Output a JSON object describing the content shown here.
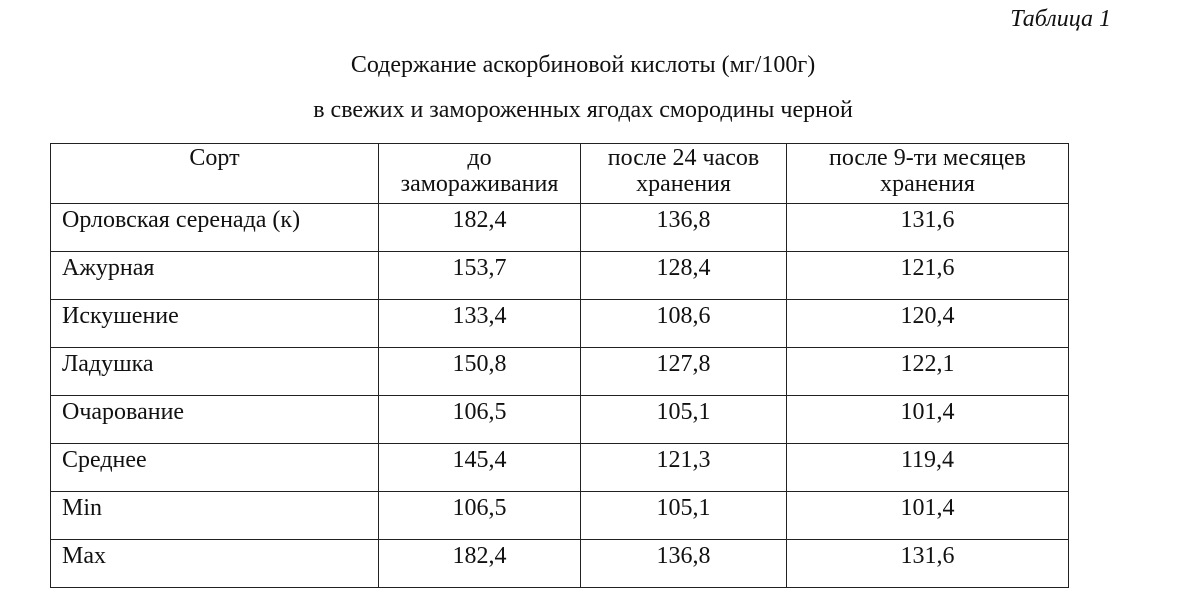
{
  "table_number": "Таблица 1",
  "title_line1": "Содержание аскорбиновой кислоты (мг/100г)",
  "title_line2": "в свежих и замороженных ягодах смородины черной",
  "headers": {
    "sort": "Сорт",
    "before_l1": "до",
    "before_l2": "замораживания",
    "h24_l1": "после 24 часов",
    "h24_l2": "хранения",
    "m9_l1": "после 9-ти месяцев",
    "m9_l2": "хранения"
  },
  "rows": [
    {
      "sort": "Орловская серенада (к)",
      "before": "182,4",
      "h24": "136,8",
      "m9": "131,6"
    },
    {
      "sort": "Ажурная",
      "before": "153,7",
      "h24": "128,4",
      "m9": "121,6"
    },
    {
      "sort": "Искушение",
      "before": "133,4",
      "h24": "108,6",
      "m9": "120,4"
    },
    {
      "sort": "Ладушка",
      "before": "150,8",
      "h24": "127,8",
      "m9": "122,1"
    },
    {
      "sort": "Очарование",
      "before": "106,5",
      "h24": "105,1",
      "m9": "101,4"
    },
    {
      "sort": "Среднее",
      "before": "145,4",
      "h24": "121,3",
      "m9": "119,4"
    },
    {
      "sort": "Min",
      "before": "106,5",
      "h24": "105,1",
      "m9": "101,4"
    },
    {
      "sort": "Max",
      "before": "182,4",
      "h24": "136,8",
      "m9": "131,6"
    }
  ]
}
